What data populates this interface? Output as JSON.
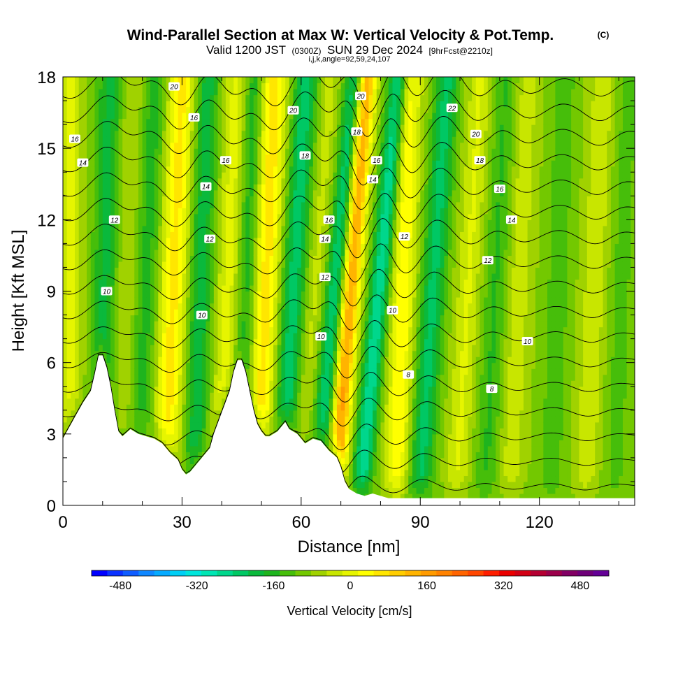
{
  "title": {
    "main": "Wind-Parallel Section at Max W: Vertical Velocity & Pot.Temp.",
    "copyright": "(C)",
    "valid_prefix": "Valid 1200 JST",
    "valid_zulu": "(0300Z)",
    "valid_date": "SUN 29 Dec 2024",
    "forecast": "[9hrFcst@2210z]",
    "indices": "i,j,k,angle=92,59,24,107"
  },
  "chart_data": {
    "type": "heatmap",
    "xlabel": "Distance [nm]",
    "ylabel": "Height [Kft MSL]",
    "xlim": [
      0,
      144
    ],
    "ylim": [
      0,
      18
    ],
    "x_ticks": [
      0,
      30,
      60,
      90,
      120
    ],
    "y_ticks": [
      0,
      3,
      6,
      9,
      12,
      15,
      18
    ],
    "terrain_profile": {
      "x": [
        0,
        1,
        3,
        5,
        7,
        8,
        9,
        10,
        11,
        12,
        13,
        14,
        15,
        17,
        19,
        21,
        23,
        25,
        27,
        29,
        30,
        31,
        32,
        33,
        35,
        37,
        38,
        40,
        42,
        43,
        44,
        45,
        46,
        47,
        48,
        49,
        50,
        51,
        52,
        54,
        56,
        57,
        59,
        61,
        63,
        65,
        67,
        69,
        70,
        71,
        72,
        74,
        76,
        78,
        80,
        82,
        84,
        86,
        90,
        100,
        110,
        120,
        130,
        140,
        144
      ],
      "height": [
        2.8,
        3.1,
        3.7,
        4.3,
        4.8,
        5.5,
        6.3,
        6.3,
        5.8,
        5.0,
        4.0,
        3.1,
        2.9,
        3.2,
        3.0,
        2.9,
        2.8,
        2.6,
        2.2,
        1.9,
        1.5,
        1.3,
        1.4,
        1.6,
        2.0,
        2.4,
        3.0,
        3.9,
        4.8,
        5.6,
        6.1,
        6.1,
        5.6,
        4.8,
        4.0,
        3.4,
        3.1,
        2.9,
        2.9,
        3.1,
        3.5,
        3.2,
        3.0,
        2.6,
        2.8,
        2.7,
        2.3,
        2.0,
        1.6,
        1.0,
        0.7,
        0.5,
        0.4,
        0.5,
        0.4,
        0.3,
        0.3,
        0.3,
        0.3,
        0.3,
        0.3,
        0.3,
        0.3,
        0.3,
        0.3
      ]
    },
    "vertical_velocity_bands": [
      {
        "x": 2,
        "tilt": 0.0,
        "width": 3.0,
        "value": 90
      },
      {
        "x": 10,
        "tilt": 0.15,
        "width": 3.0,
        "value": -130
      },
      {
        "x": 16,
        "tilt": 0.2,
        "width": 3.0,
        "value": 60
      },
      {
        "x": 20,
        "tilt": 0.25,
        "width": 3.5,
        "value": -100
      },
      {
        "x": 27,
        "tilt": 0.25,
        "width": 3.5,
        "value": 180
      },
      {
        "x": 34,
        "tilt": 0.2,
        "width": 3.0,
        "value": -140
      },
      {
        "x": 41,
        "tilt": 0.25,
        "width": 3.0,
        "value": 110
      },
      {
        "x": 46,
        "tilt": 0.2,
        "width": 3.0,
        "value": -130
      },
      {
        "x": 50,
        "tilt": 0.25,
        "width": 3.5,
        "value": 200
      },
      {
        "x": 57,
        "tilt": 0.35,
        "width": 3.0,
        "value": -180
      },
      {
        "x": 62,
        "tilt": 0.45,
        "width": 2.5,
        "value": 60
      },
      {
        "x": 67,
        "tilt": 0.55,
        "width": 2.5,
        "value": -210
      },
      {
        "x": 71,
        "tilt": 0.45,
        "width": 2.5,
        "value": 300
      },
      {
        "x": 78,
        "tilt": 0.55,
        "width": 2.5,
        "value": -230
      },
      {
        "x": 85,
        "tilt": 0.2,
        "width": 3.0,
        "value": 160
      },
      {
        "x": 92,
        "tilt": 0.4,
        "width": 3.0,
        "value": -170
      },
      {
        "x": 101,
        "tilt": 0.35,
        "width": 3.0,
        "value": 90
      },
      {
        "x": 108,
        "tilt": 0.3,
        "width": 3.0,
        "value": -80
      },
      {
        "x": 114,
        "tilt": 0.25,
        "width": 3.0,
        "value": 70
      },
      {
        "x": 124,
        "tilt": 0.2,
        "width": 3.0,
        "value": -60
      },
      {
        "x": 133,
        "tilt": 0.25,
        "width": 3.0,
        "value": 80
      },
      {
        "x": 140,
        "tilt": 0.2,
        "width": 3.0,
        "value": -50
      }
    ],
    "potential_temperature_levels": [
      6,
      8,
      10,
      12,
      14,
      16,
      18,
      20,
      22
    ],
    "potential_temperature_labels": [
      {
        "text": "16",
        "x": 3,
        "y": 15.4
      },
      {
        "text": "14",
        "x": 5,
        "y": 14.4
      },
      {
        "text": "20",
        "x": 28,
        "y": 17.6
      },
      {
        "text": "16",
        "x": 33,
        "y": 16.3
      },
      {
        "text": "16",
        "x": 41,
        "y": 14.5
      },
      {
        "text": "14",
        "x": 36,
        "y": 13.4
      },
      {
        "text": "12",
        "x": 13,
        "y": 12.0
      },
      {
        "text": "12",
        "x": 37,
        "y": 11.2
      },
      {
        "text": "10",
        "x": 11,
        "y": 9.0
      },
      {
        "text": "10",
        "x": 35,
        "y": 8.0
      },
      {
        "text": "20",
        "x": 58,
        "y": 16.6
      },
      {
        "text": "18",
        "x": 61,
        "y": 14.7
      },
      {
        "text": "16",
        "x": 67,
        "y": 12.0
      },
      {
        "text": "14",
        "x": 66,
        "y": 11.2
      },
      {
        "text": "12",
        "x": 66,
        "y": 9.6
      },
      {
        "text": "10",
        "x": 65,
        "y": 7.1
      },
      {
        "text": "20",
        "x": 75,
        "y": 17.2
      },
      {
        "text": "18",
        "x": 74,
        "y": 15.7
      },
      {
        "text": "16",
        "x": 79,
        "y": 14.5
      },
      {
        "text": "14",
        "x": 78,
        "y": 13.7
      },
      {
        "text": "12",
        "x": 86,
        "y": 11.3
      },
      {
        "text": "10",
        "x": 83,
        "y": 8.2
      },
      {
        "text": "8",
        "x": 87,
        "y": 5.5
      },
      {
        "text": "22",
        "x": 98,
        "y": 16.7
      },
      {
        "text": "20",
        "x": 104,
        "y": 15.6
      },
      {
        "text": "18",
        "x": 105,
        "y": 14.5
      },
      {
        "text": "16",
        "x": 110,
        "y": 13.3
      },
      {
        "text": "14",
        "x": 113,
        "y": 12.0
      },
      {
        "text": "12",
        "x": 107,
        "y": 10.3
      },
      {
        "text": "10",
        "x": 117,
        "y": 6.9
      },
      {
        "text": "8",
        "x": 108,
        "y": 4.9
      }
    ]
  },
  "colorbar": {
    "title": "Vertical Velocity [cm/s]",
    "min": -540,
    "max": 540,
    "step": 40,
    "tick_labels": [
      "-480",
      "-320",
      "-160",
      "0",
      "160",
      "320",
      "480"
    ],
    "tick_values": [
      -480,
      -320,
      -160,
      0,
      160,
      320,
      480
    ],
    "colors": [
      "#0000ff",
      "#0a32ff",
      "#0f5cff",
      "#0f87ff",
      "#05aaff",
      "#00cff5",
      "#00e6dc",
      "#00e6b4",
      "#00d78c",
      "#00c864",
      "#0ab93c",
      "#1eb41e",
      "#46be0a",
      "#73c800",
      "#a0d200",
      "#c8e600",
      "#e6f500",
      "#ffff00",
      "#ffe600",
      "#ffcd00",
      "#ffb400",
      "#ff9b00",
      "#ff8200",
      "#ff6400",
      "#ff4600",
      "#ff1e00",
      "#eb0000",
      "#d20014",
      "#b40032",
      "#9b004b",
      "#820064",
      "#6e0078",
      "#640096"
    ]
  }
}
